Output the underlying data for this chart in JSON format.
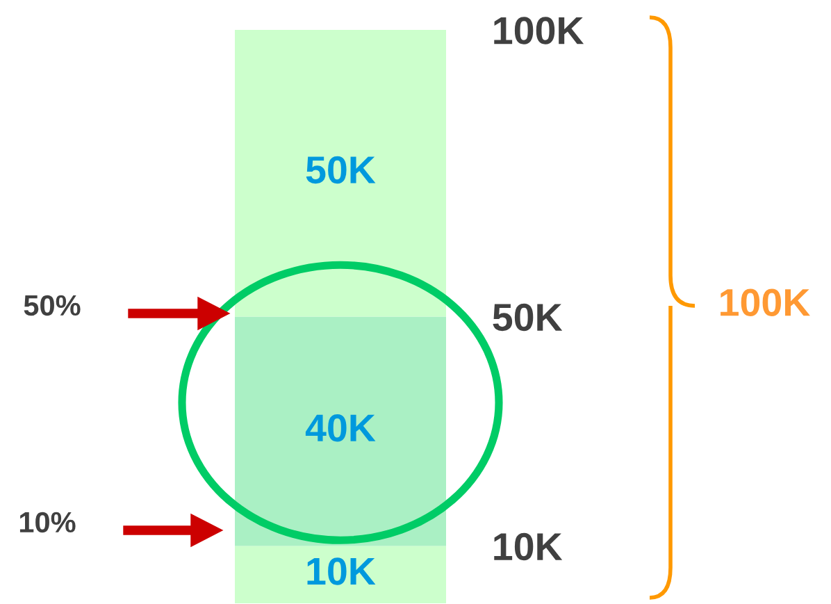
{
  "chart_data": {
    "type": "bar",
    "stacked": true,
    "categories": [
      null
    ],
    "series": [
      {
        "color": "#ccffcc",
        "values": [
          10000
        ],
        "value_labels": [
          "10K"
        ]
      },
      {
        "color": "#aaf0c4",
        "values": [
          40000
        ],
        "value_labels": [
          "40K"
        ]
      },
      {
        "color": "#ccffcc",
        "values": [
          50000
        ],
        "value_labels": [
          "50K"
        ]
      }
    ],
    "ylim": [
      0,
      100000
    ],
    "yticks": [
      {
        "value": 10000,
        "label": "10K"
      },
      {
        "value": 50000,
        "label": "50K"
      },
      {
        "value": 100000,
        "label": "100K"
      }
    ],
    "tick_labels": "y",
    "grid": false,
    "legend": false,
    "annotations": [
      "50%",
      "10%",
      "100K"
    ]
  }
}
